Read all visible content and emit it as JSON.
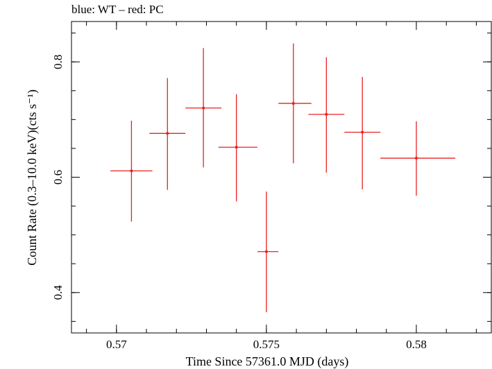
{
  "chart_data": {
    "type": "scatter",
    "title": {
      "blue_label": "blue: WT",
      "separator": " – ",
      "red_label": "red: PC"
    },
    "xlabel": "Time Since 57361.0 MJD (days)",
    "ylabel": "Count Rate (0.3–10.0 keV)(cts s⁻¹)",
    "xlim": [
      0.5685,
      0.5825
    ],
    "ylim": [
      0.33,
      0.87
    ],
    "x_ticks": [
      0.57,
      0.575,
      0.58
    ],
    "x_tick_labels": [
      "0.57",
      "0.575",
      "0.58"
    ],
    "y_ticks": [
      0.4,
      0.6,
      0.8
    ],
    "y_tick_labels": [
      "0.4",
      "0.6",
      "0.8"
    ],
    "x_minor_step": 0.001,
    "y_minor_step": 0.05,
    "grid": false,
    "colors": {
      "red": "#e8201f",
      "blue": "#1f3fe8",
      "axis": "#000000"
    },
    "series": [
      {
        "name": "PC",
        "color": "#e8201f",
        "points": [
          {
            "x": 0.5705,
            "y": 0.611,
            "xerr_lo": 0.0007,
            "xerr_hi": 0.0007,
            "yerr_lo": 0.088,
            "yerr_hi": 0.087
          },
          {
            "x": 0.5717,
            "y": 0.676,
            "xerr_lo": 0.0006,
            "xerr_hi": 0.0006,
            "yerr_lo": 0.098,
            "yerr_hi": 0.096
          },
          {
            "x": 0.5729,
            "y": 0.72,
            "xerr_lo": 0.0006,
            "xerr_hi": 0.0006,
            "yerr_lo": 0.103,
            "yerr_hi": 0.104
          },
          {
            "x": 0.574,
            "y": 0.652,
            "xerr_lo": 0.0006,
            "xerr_hi": 0.0007,
            "yerr_lo": 0.094,
            "yerr_hi": 0.092
          },
          {
            "x": 0.575,
            "y": 0.471,
            "xerr_lo": 0.0003,
            "xerr_hi": 0.0004,
            "yerr_lo": 0.105,
            "yerr_hi": 0.104
          },
          {
            "x": 0.5759,
            "y": 0.728,
            "xerr_lo": 0.0005,
            "xerr_hi": 0.0006,
            "yerr_lo": 0.104,
            "yerr_hi": 0.104
          },
          {
            "x": 0.577,
            "y": 0.709,
            "xerr_lo": 0.0006,
            "xerr_hi": 0.0006,
            "yerr_lo": 0.101,
            "yerr_hi": 0.099
          },
          {
            "x": 0.5782,
            "y": 0.678,
            "xerr_lo": 0.0006,
            "xerr_hi": 0.0006,
            "yerr_lo": 0.099,
            "yerr_hi": 0.096
          },
          {
            "x": 0.58,
            "y": 0.633,
            "xerr_lo": 0.0012,
            "xerr_hi": 0.0013,
            "yerr_lo": 0.065,
            "yerr_hi": 0.064
          }
        ]
      }
    ]
  }
}
